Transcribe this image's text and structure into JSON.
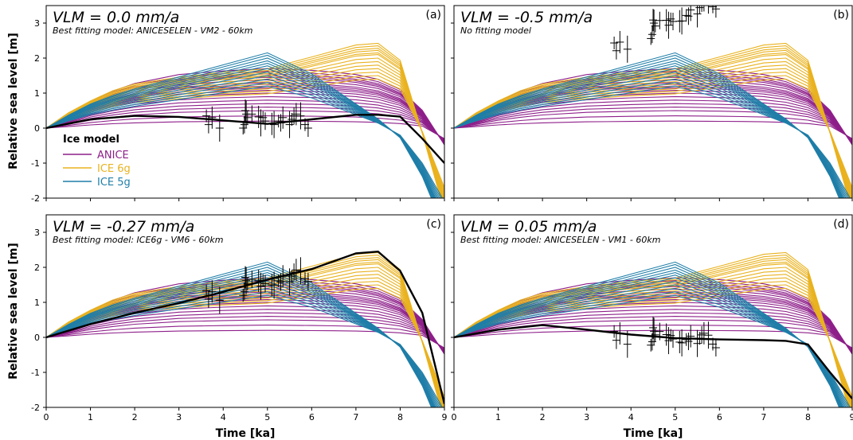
{
  "axis_labels": {
    "ylabel": "Relative sea level [m]",
    "xlabel": "Time [ka]"
  },
  "legend": {
    "title": "Ice model",
    "items": [
      {
        "label": "ANICE",
        "color": "#8e1f8a"
      },
      {
        "label": "ICE 6g",
        "color": "#e9b21f"
      },
      {
        "label": "ICE 5g",
        "color": "#1f7ea8"
      }
    ]
  },
  "panels": [
    {
      "id": "a",
      "panel_label": "(a)",
      "vlm_label": "VLM = 0.0 mm/a",
      "subtitle": "Best fitting model: ANICESELEN - VM2 - 60km"
    },
    {
      "id": "b",
      "panel_label": "(b)",
      "vlm_label": "VLM = -0.5 mm/a",
      "subtitle": "No fitting model"
    },
    {
      "id": "c",
      "panel_label": "(c)",
      "vlm_label": "VLM = -0.27 mm/a",
      "subtitle": "Best fitting model: ICE6g - VM6 - 60km"
    },
    {
      "id": "d",
      "panel_label": "(d)",
      "vlm_label": "VLM = 0.05 mm/a",
      "subtitle": "Best fitting model: ANICESELEN - VM1 - 60km"
    }
  ],
  "chart_data": [
    {
      "type": "line",
      "panel": "a",
      "xlim": [
        0,
        9
      ],
      "ylim": [
        -2,
        3.5
      ],
      "xticks": [
        "0",
        "1",
        "2",
        "3",
        "4",
        "5",
        "6",
        "7",
        "8",
        "9"
      ],
      "yticks": [
        "-2",
        "-1",
        "0",
        "1",
        "2",
        "3"
      ],
      "best_fit": {
        "x": [
          0,
          1,
          2,
          3,
          4,
          5,
          6,
          7,
          7.5,
          8,
          8.5,
          9
        ],
        "y": [
          0,
          0.25,
          0.35,
          0.32,
          0.22,
          0.12,
          0.25,
          0.38,
          0.38,
          0.33,
          -0.3,
          -1.0
        ]
      },
      "observations_vlm_offset_rate": 0.0
    },
    {
      "type": "line",
      "panel": "b",
      "xlim": [
        0,
        9
      ],
      "ylim": [
        -2,
        3.5
      ],
      "xticks": [
        "0",
        "1",
        "2",
        "3",
        "4",
        "5",
        "6",
        "7",
        "8",
        "9"
      ],
      "yticks": [
        "-2",
        "-1",
        "0",
        "1",
        "2",
        "3"
      ],
      "best_fit": null,
      "observations_vlm_offset_rate": -0.5
    },
    {
      "type": "line",
      "panel": "c",
      "xlim": [
        0,
        9
      ],
      "ylim": [
        -2,
        3.5
      ],
      "xticks": [
        "0",
        "1",
        "2",
        "3",
        "4",
        "5",
        "6",
        "7",
        "8",
        "9"
      ],
      "yticks": [
        "-2",
        "-1",
        "0",
        "1",
        "2",
        "3"
      ],
      "best_fit": {
        "x": [
          0,
          1,
          2,
          3,
          4,
          5,
          6,
          7,
          7.5,
          8,
          8.5,
          9
        ],
        "y": [
          0,
          0.38,
          0.7,
          0.98,
          1.3,
          1.65,
          1.95,
          2.4,
          2.45,
          1.9,
          0.7,
          -1.9
        ]
      },
      "observations_vlm_offset_rate": -0.27
    },
    {
      "type": "line",
      "panel": "d",
      "xlim": [
        0,
        9
      ],
      "ylim": [
        -2,
        3.5
      ],
      "xticks": [
        "0",
        "1",
        "2",
        "3",
        "4",
        "5",
        "6",
        "7",
        "8",
        "9"
      ],
      "yticks": [
        "-2",
        "-1",
        "0",
        "1",
        "2",
        "3"
      ],
      "best_fit": {
        "x": [
          0,
          1,
          2,
          3,
          4,
          5,
          6,
          7,
          7.5,
          8,
          8.5,
          9
        ],
        "y": [
          0,
          0.22,
          0.35,
          0.22,
          0.08,
          -0.02,
          -0.06,
          -0.08,
          -0.1,
          -0.2,
          -1.0,
          -1.75
        ]
      },
      "observations_vlm_offset_rate": 0.05
    }
  ],
  "model_families": [
    {
      "name": "ANICE",
      "color": "#8e1f8a",
      "x": [
        0,
        0.5,
        1,
        1.5,
        2,
        3,
        4,
        5,
        6,
        6.5,
        7,
        7.5,
        8,
        8.5,
        9
      ],
      "shape": [
        0,
        0.22,
        0.45,
        0.62,
        0.75,
        0.9,
        0.96,
        1.0,
        0.97,
        0.94,
        0.9,
        0.82,
        0.65,
        0.3,
        -0.3
      ],
      "peaks": [
        0.2,
        0.35,
        0.5,
        0.6,
        0.7,
        0.8,
        0.9,
        1.0,
        1.08,
        1.15,
        1.2,
        1.25,
        1.3,
        1.38,
        1.45,
        1.5,
        1.55,
        1.62,
        1.7
      ]
    },
    {
      "name": "ICE 6g",
      "color": "#e9b21f",
      "x": [
        0,
        0.5,
        1,
        1.5,
        2,
        3,
        4,
        5,
        6,
        7,
        7.5,
        8,
        8.5,
        9
      ],
      "shape": [
        0,
        0.18,
        0.32,
        0.44,
        0.52,
        0.6,
        0.66,
        0.7,
        0.84,
        0.98,
        1.0,
        0.8,
        -0.1,
        -1.7
      ],
      "peaks": [
        1.4,
        1.5,
        1.6,
        1.7,
        1.8,
        1.9,
        2.0,
        2.1,
        2.15,
        2.22,
        2.28,
        2.35,
        2.42
      ]
    },
    {
      "name": "ICE 5g",
      "color": "#1f7ea8",
      "x": [
        0,
        0.5,
        1,
        1.5,
        2,
        3,
        4,
        5,
        6,
        7,
        7.5,
        8,
        8.5,
        9
      ],
      "shape": [
        0,
        0.17,
        0.32,
        0.43,
        0.52,
        0.68,
        0.84,
        1.0,
        0.72,
        0.32,
        0.12,
        -0.2,
        -1.0,
        -2.1
      ],
      "peaks": [
        1.2,
        1.3,
        1.4,
        1.5,
        1.6,
        1.7,
        1.78,
        1.85,
        1.92,
        2.0,
        2.08,
        2.15
      ]
    }
  ],
  "observations": {
    "x": [
      3.62,
      3.67,
      3.75,
      3.92,
      4.45,
      4.48,
      4.5,
      4.52,
      4.55,
      4.65,
      4.8,
      4.85,
      4.9,
      4.95,
      5.1,
      5.15,
      5.25,
      5.3,
      5.35,
      5.5,
      5.55,
      5.6,
      5.65,
      5.75,
      5.85,
      5.92
    ],
    "y0": [
      0.35,
      0.1,
      0.3,
      0.0,
      0.0,
      0.1,
      0.5,
      0.4,
      0.3,
      0.4,
      0.32,
      0.15,
      0.3,
      0.2,
      0.12,
      0.1,
      0.2,
      0.15,
      0.3,
      0.1,
      0.25,
      0.35,
      0.4,
      0.35,
      0.1,
      0.0
    ]
  }
}
